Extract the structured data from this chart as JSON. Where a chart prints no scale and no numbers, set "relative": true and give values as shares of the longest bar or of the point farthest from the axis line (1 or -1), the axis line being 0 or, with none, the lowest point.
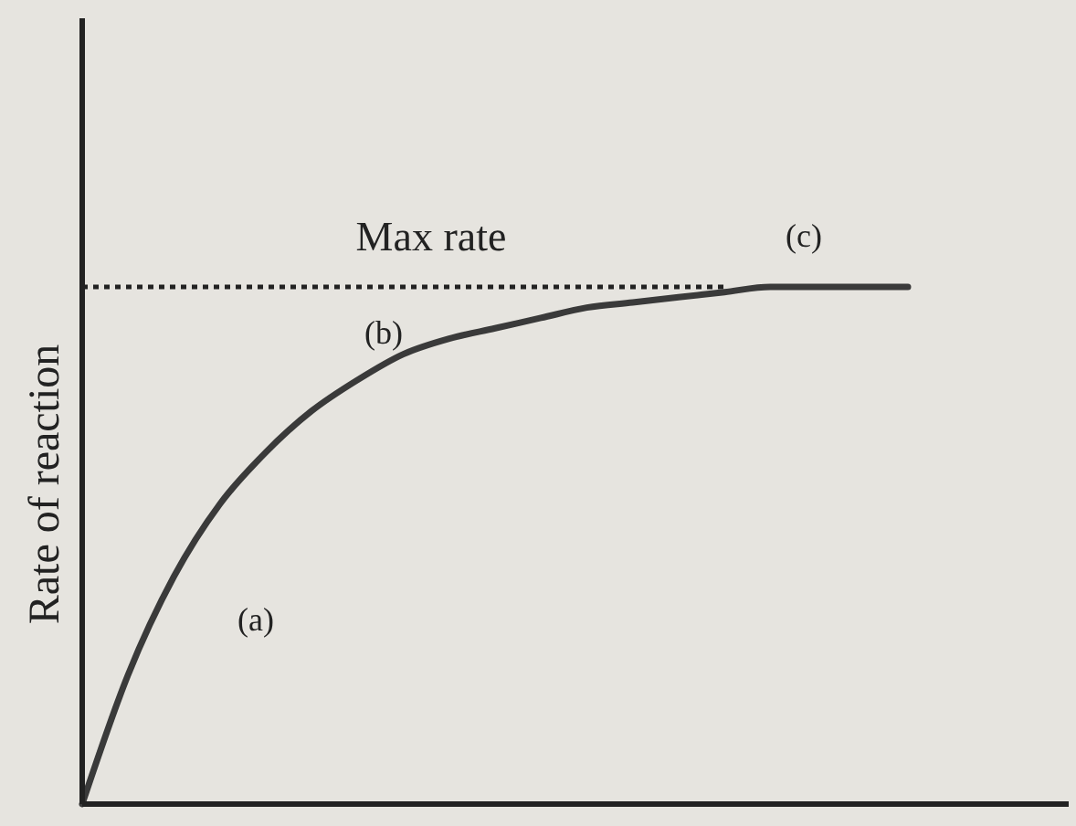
{
  "chart_data": {
    "type": "line",
    "relative": true,
    "ylabel": "Rate of reaction",
    "categories": [
      null,
      null,
      null,
      null,
      null,
      null,
      null,
      null,
      null,
      null,
      null,
      null,
      null,
      null,
      null,
      null,
      null,
      null,
      null
    ],
    "series": [
      {
        "color": "#3a3a3a",
        "values": [
          0,
          0.25,
          0.44,
          0.58,
          0.68,
          0.76,
          0.82,
          0.87,
          0.9,
          0.92,
          0.94,
          0.96,
          0.97,
          0.98,
          0.99,
          1,
          1,
          1,
          1
        ]
      }
    ],
    "ref_lines": [
      {
        "axis": "y",
        "value": 1,
        "label": "Max rate",
        "line_style": "dotted",
        "color": "#222222"
      }
    ],
    "annotations": [
      "(a)",
      "(b)",
      "(c)"
    ],
    "marker": "none",
    "line_style": "solid"
  }
}
